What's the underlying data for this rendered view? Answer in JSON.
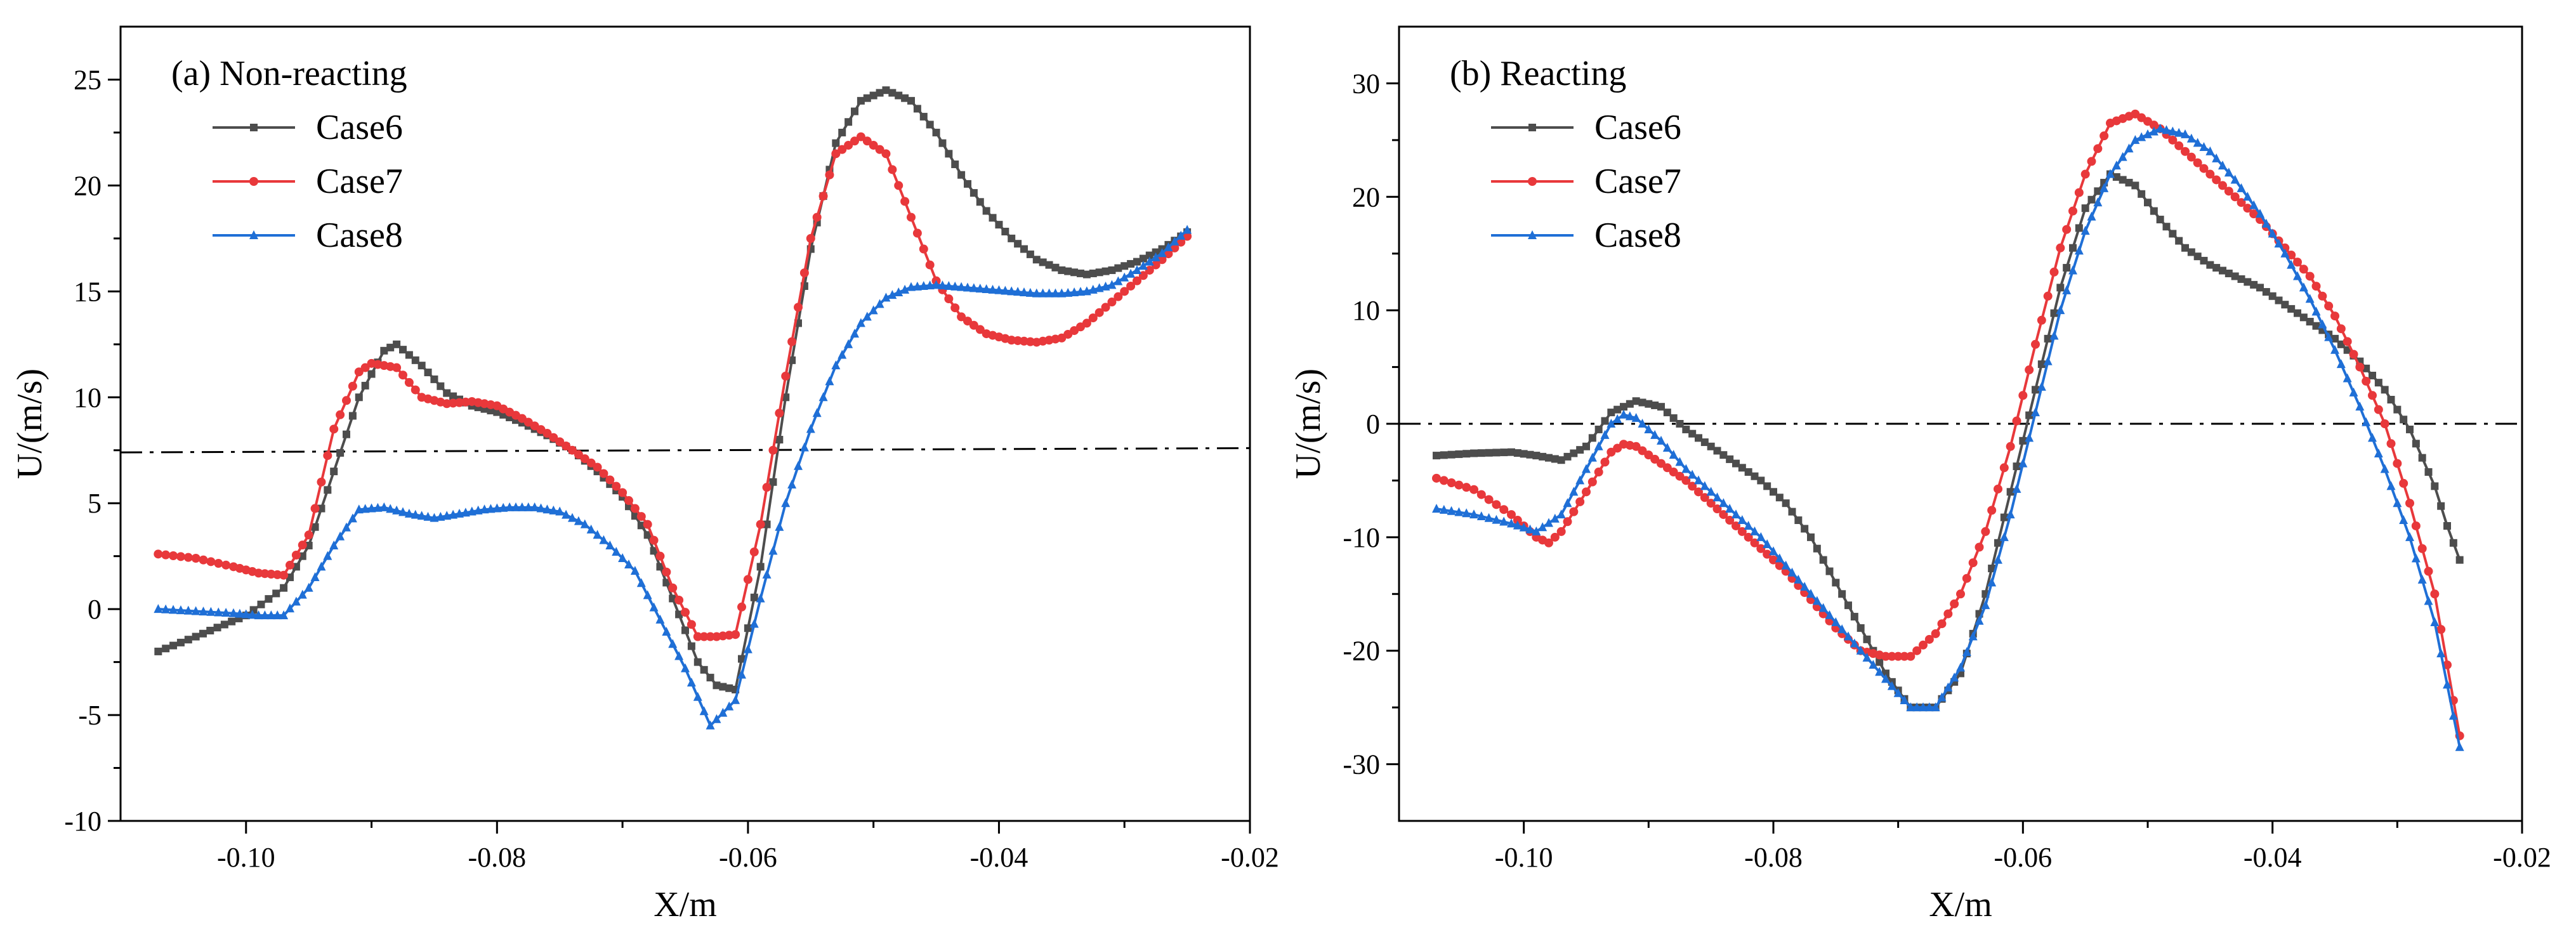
{
  "figure": {
    "background": "#ffffff"
  },
  "chart_data": [
    {
      "type": "line",
      "title": "(a) Non-reacting",
      "xlabel": "X/m",
      "ylabel": "U/(m/s)",
      "xlim": [
        -0.11,
        -0.02
      ],
      "ylim": [
        -10,
        27.5
      ],
      "xticks": [
        -0.1,
        -0.08,
        -0.06,
        -0.04,
        -0.02
      ],
      "xtick_labels": [
        "-0.10",
        "-0.08",
        "-0.06",
        "-0.04",
        "-0.02"
      ],
      "yticks": [
        -10,
        -5,
        0,
        5,
        10,
        15,
        20,
        25
      ],
      "ytick_labels": [
        "-10",
        "-5",
        "0",
        "5",
        "10",
        "15",
        "20",
        "25"
      ],
      "grid": false,
      "legend_position": "top-left",
      "reference_line": {
        "style": "dash-dot",
        "x": [
          -0.11,
          -0.02
        ],
        "y": [
          7.4,
          7.6
        ]
      },
      "series": [
        {
          "name": "Case6",
          "color": "#4d4d4d",
          "marker": "square",
          "x": [
            -0.107,
            -0.104,
            -0.1,
            -0.097,
            -0.095,
            -0.093,
            -0.091,
            -0.089,
            -0.088,
            -0.086,
            -0.084,
            -0.082,
            -0.08,
            -0.078,
            -0.076,
            -0.074,
            -0.072,
            -0.07,
            -0.068,
            -0.066,
            -0.064,
            -0.0625,
            -0.061,
            -0.059,
            -0.057,
            -0.055,
            -0.053,
            -0.051,
            -0.049,
            -0.047,
            -0.045,
            -0.043,
            -0.041,
            -0.039,
            -0.037,
            -0.035,
            -0.033,
            -0.031,
            -0.029,
            -0.027,
            -0.025
          ],
          "y": [
            -2.0,
            -1.3,
            -0.3,
            1.0,
            3.0,
            6.5,
            10.0,
            12.2,
            12.5,
            11.5,
            10.2,
            9.6,
            9.3,
            8.8,
            8.2,
            7.5,
            6.5,
            5.3,
            3.5,
            0.5,
            -2.5,
            -3.6,
            -3.8,
            2.0,
            10.0,
            17.0,
            22.0,
            24.0,
            24.5,
            24.0,
            22.5,
            20.5,
            18.8,
            17.5,
            16.5,
            16.0,
            15.8,
            16.0,
            16.4,
            17.0,
            17.8
          ]
        },
        {
          "name": "Case7",
          "color": "#e8383b",
          "marker": "circle",
          "x": [
            -0.107,
            -0.104,
            -0.101,
            -0.099,
            -0.097,
            -0.095,
            -0.093,
            -0.091,
            -0.09,
            -0.088,
            -0.086,
            -0.084,
            -0.082,
            -0.08,
            -0.078,
            -0.076,
            -0.074,
            -0.072,
            -0.07,
            -0.068,
            -0.066,
            -0.064,
            -0.0625,
            -0.061,
            -0.059,
            -0.057,
            -0.055,
            -0.053,
            -0.051,
            -0.049,
            -0.047,
            -0.045,
            -0.043,
            -0.041,
            -0.039,
            -0.037,
            -0.035,
            -0.033,
            -0.031,
            -0.029,
            -0.027,
            -0.025
          ],
          "y": [
            2.6,
            2.4,
            2.0,
            1.7,
            1.6,
            3.5,
            8.5,
            11.2,
            11.6,
            11.4,
            10.0,
            9.7,
            9.8,
            9.6,
            9.0,
            8.3,
            7.5,
            6.7,
            5.5,
            4.0,
            1.0,
            -1.3,
            -1.3,
            -1.2,
            4.0,
            11.0,
            17.5,
            21.5,
            22.3,
            21.5,
            18.5,
            15.5,
            13.8,
            13.0,
            12.7,
            12.6,
            12.8,
            13.5,
            14.5,
            15.5,
            16.5,
            17.6
          ]
        },
        {
          "name": "Case8",
          "color": "#1f6fd6",
          "marker": "triangle",
          "x": [
            -0.107,
            -0.104,
            -0.101,
            -0.099,
            -0.097,
            -0.095,
            -0.093,
            -0.091,
            -0.089,
            -0.087,
            -0.085,
            -0.083,
            -0.081,
            -0.079,
            -0.077,
            -0.075,
            -0.073,
            -0.071,
            -0.069,
            -0.067,
            -0.065,
            -0.063,
            -0.061,
            -0.059,
            -0.057,
            -0.055,
            -0.053,
            -0.051,
            -0.049,
            -0.047,
            -0.045,
            -0.043,
            -0.041,
            -0.039,
            -0.037,
            -0.035,
            -0.033,
            -0.031,
            -0.029,
            -0.027,
            -0.025
          ],
          "y": [
            0.0,
            -0.1,
            -0.2,
            -0.3,
            -0.3,
            1.0,
            3.0,
            4.7,
            4.8,
            4.5,
            4.3,
            4.5,
            4.7,
            4.8,
            4.8,
            4.6,
            4.0,
            3.0,
            1.8,
            -0.5,
            -2.8,
            -5.5,
            -4.3,
            0.5,
            5.0,
            8.5,
            11.5,
            13.5,
            14.7,
            15.2,
            15.3,
            15.2,
            15.1,
            15.0,
            14.9,
            14.9,
            15.0,
            15.3,
            16.0,
            16.8,
            17.9
          ]
        }
      ]
    },
    {
      "type": "line",
      "title": "(b) Reacting",
      "xlabel": "X/m",
      "ylabel": "U/(m/s)",
      "xlim": [
        -0.11,
        -0.02
      ],
      "ylim": [
        -35,
        35
      ],
      "xticks": [
        -0.1,
        -0.08,
        -0.06,
        -0.04,
        -0.02
      ],
      "xtick_labels": [
        "-0.10",
        "-0.08",
        "-0.06",
        "-0.04",
        "-0.02"
      ],
      "yticks": [
        -30,
        -20,
        -10,
        0,
        10,
        20,
        30
      ],
      "ytick_labels": [
        "-30",
        "-20",
        "-10",
        "0",
        "10",
        "20",
        "30"
      ],
      "grid": false,
      "legend_position": "top-left",
      "reference_line": {
        "style": "dash-dot",
        "x": [
          -0.11,
          -0.02
        ],
        "y": [
          0,
          0
        ]
      },
      "series": [
        {
          "name": "Case6",
          "color": "#4d4d4d",
          "marker": "square",
          "x": [
            -0.107,
            -0.104,
            -0.101,
            -0.099,
            -0.097,
            -0.095,
            -0.093,
            -0.091,
            -0.089,
            -0.087,
            -0.085,
            -0.083,
            -0.081,
            -0.079,
            -0.077,
            -0.075,
            -0.073,
            -0.071,
            -0.069,
            -0.067,
            -0.065,
            -0.063,
            -0.061,
            -0.059,
            -0.057,
            -0.055,
            -0.053,
            -0.051,
            -0.049,
            -0.047,
            -0.045,
            -0.043,
            -0.041,
            -0.039,
            -0.037,
            -0.035,
            -0.033,
            -0.031,
            -0.029,
            -0.027,
            -0.026,
            -0.025
          ],
          "y": [
            -2.8,
            -2.6,
            -2.5,
            -2.8,
            -3.2,
            -2.0,
            1.0,
            2.0,
            1.5,
            -0.5,
            -2.0,
            -3.5,
            -5.0,
            -7.0,
            -10.0,
            -14.0,
            -18.0,
            -22.0,
            -25.0,
            -25.0,
            -22.0,
            -15.0,
            -6.0,
            3.0,
            12.0,
            19.0,
            22.0,
            21.0,
            18.0,
            15.5,
            14.0,
            13.0,
            12.0,
            10.5,
            9.0,
            7.5,
            5.5,
            3.0,
            -0.5,
            -5.5,
            -9.0,
            -12.0
          ]
        },
        {
          "name": "Case7",
          "color": "#e8383b",
          "marker": "circle",
          "x": [
            -0.107,
            -0.104,
            -0.101,
            -0.099,
            -0.098,
            -0.097,
            -0.095,
            -0.093,
            -0.092,
            -0.091,
            -0.089,
            -0.087,
            -0.085,
            -0.083,
            -0.081,
            -0.079,
            -0.077,
            -0.075,
            -0.073,
            -0.071,
            -0.069,
            -0.067,
            -0.065,
            -0.063,
            -0.061,
            -0.059,
            -0.057,
            -0.055,
            -0.053,
            -0.051,
            -0.049,
            -0.047,
            -0.045,
            -0.043,
            -0.041,
            -0.039,
            -0.037,
            -0.035,
            -0.033,
            -0.031,
            -0.029,
            -0.027,
            -0.025
          ],
          "y": [
            -4.8,
            -5.8,
            -8.0,
            -10.0,
            -10.5,
            -9.5,
            -6.0,
            -2.5,
            -1.8,
            -2.0,
            -3.5,
            -5.0,
            -7.0,
            -9.0,
            -11.0,
            -13.0,
            -15.5,
            -18.0,
            -20.0,
            -20.5,
            -20.5,
            -18.5,
            -15.0,
            -9.5,
            -2.0,
            7.0,
            15.5,
            22.0,
            26.5,
            27.3,
            26.0,
            24.0,
            22.0,
            20.0,
            18.0,
            15.5,
            13.0,
            9.5,
            5.0,
            0.0,
            -7.0,
            -15.0,
            -27.5
          ]
        },
        {
          "name": "Case8",
          "color": "#1f6fd6",
          "marker": "triangle",
          "x": [
            -0.107,
            -0.104,
            -0.101,
            -0.099,
            -0.097,
            -0.095,
            -0.093,
            -0.092,
            -0.091,
            -0.089,
            -0.087,
            -0.085,
            -0.083,
            -0.081,
            -0.079,
            -0.077,
            -0.075,
            -0.073,
            -0.071,
            -0.069,
            -0.067,
            -0.065,
            -0.063,
            -0.061,
            -0.059,
            -0.057,
            -0.055,
            -0.053,
            -0.051,
            -0.049,
            -0.047,
            -0.045,
            -0.043,
            -0.041,
            -0.039,
            -0.037,
            -0.035,
            -0.033,
            -0.031,
            -0.029,
            -0.027,
            -0.025
          ],
          "y": [
            -7.5,
            -8.0,
            -8.8,
            -9.5,
            -8.0,
            -4.0,
            0.0,
            0.8,
            0.5,
            -1.5,
            -4.0,
            -6.0,
            -8.0,
            -10.0,
            -12.5,
            -15.0,
            -17.5,
            -20.0,
            -22.5,
            -25.0,
            -25.0,
            -21.5,
            -16.0,
            -8.0,
            1.0,
            10.0,
            17.0,
            22.0,
            25.0,
            26.0,
            25.5,
            24.0,
            21.5,
            18.5,
            15.0,
            11.0,
            6.5,
            1.5,
            -4.0,
            -10.0,
            -17.5,
            -28.5
          ]
        }
      ]
    }
  ]
}
